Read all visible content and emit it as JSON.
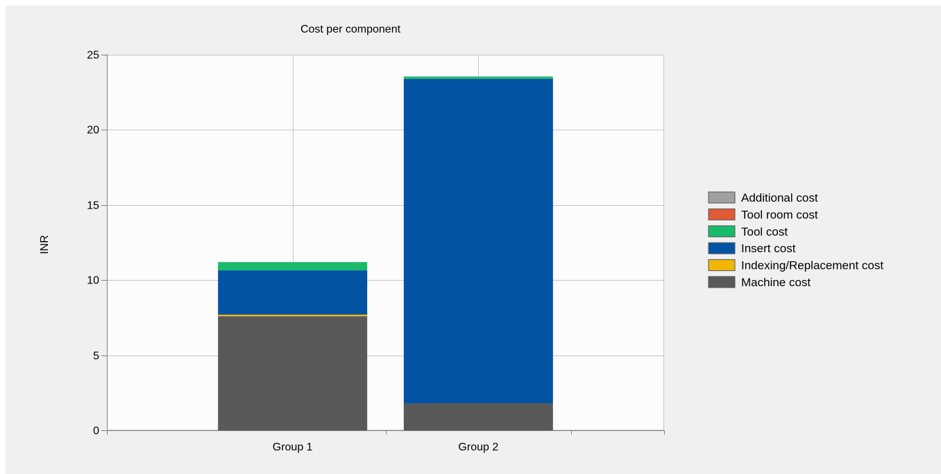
{
  "chart_data": {
    "type": "bar",
    "stacked": true,
    "title": "Cost per component",
    "xlabel": "",
    "ylabel": "INR",
    "categories": [
      "Group 1",
      "Group 2"
    ],
    "ylim": [
      0,
      25
    ],
    "yticks": [
      0,
      5,
      10,
      15,
      20,
      25
    ],
    "grid": true,
    "legend_position": "right",
    "series": [
      {
        "name": "Machine cost",
        "color": "#595959",
        "values": [
          7.6,
          1.8
        ]
      },
      {
        "name": "Indexing/Replacement cost",
        "color": "#f2b705",
        "values": [
          0.1,
          0.0
        ]
      },
      {
        "name": "Insert cost",
        "color": "#0353a4",
        "values": [
          2.95,
          21.6
        ]
      },
      {
        "name": "Tool cost",
        "color": "#1aba6b",
        "values": [
          0.55,
          0.15
        ]
      },
      {
        "name": "Tool room cost",
        "color": "#e05a36",
        "values": [
          0,
          0
        ]
      },
      {
        "name": "Additional cost",
        "color": "#a0a0a0",
        "values": [
          0,
          0
        ]
      }
    ],
    "legend_order": [
      "Additional cost",
      "Tool room cost",
      "Tool cost",
      "Insert cost",
      "Indexing/Replacement cost",
      "Machine cost"
    ]
  }
}
